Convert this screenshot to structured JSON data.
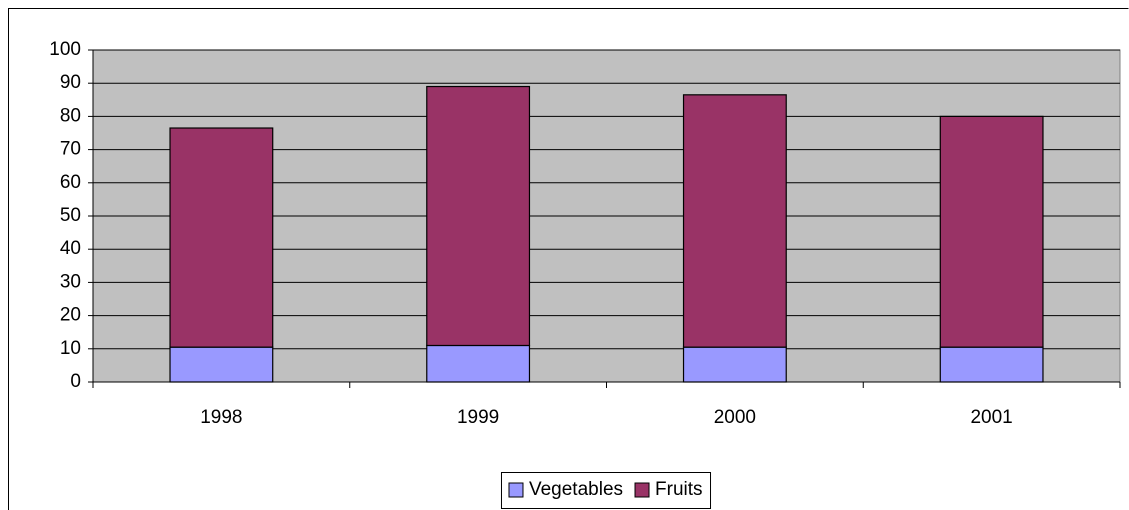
{
  "chart_data": {
    "type": "bar",
    "stacked": true,
    "categories": [
      "1998",
      "1999",
      "2000",
      "2001"
    ],
    "series": [
      {
        "name": "Vegetables",
        "color": "#9999ff",
        "values": [
          10.5,
          11,
          10.5,
          10.5
        ]
      },
      {
        "name": "Fruits",
        "color": "#993366",
        "values": [
          66,
          78,
          76,
          69.5
        ]
      }
    ],
    "ylim": [
      0,
      100
    ],
    "yticks": [
      0,
      10,
      20,
      30,
      40,
      50,
      60,
      70,
      80,
      90,
      100
    ],
    "grid": true,
    "legend": "bottom"
  }
}
